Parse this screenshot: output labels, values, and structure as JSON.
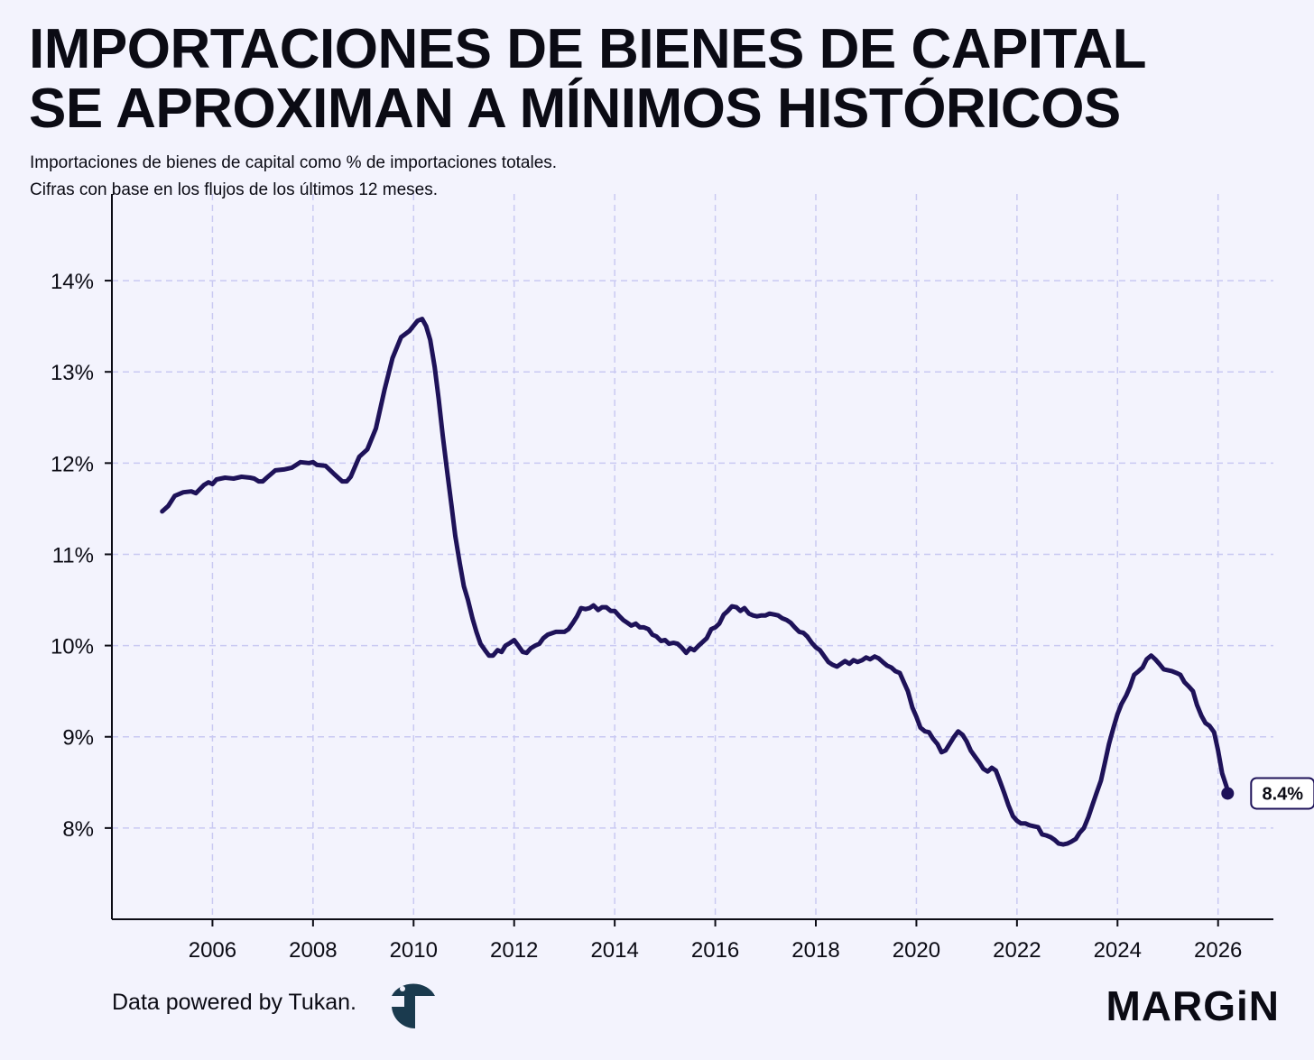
{
  "header": {
    "title_line1": "IMPORTACIONES DE BIENES DE CAPITAL",
    "title_line2": "SE APROXIMAN A MÍNIMOS HISTÓRICOS",
    "subtitle_line1": "Importaciones de bienes de capital como % de importaciones totales.",
    "subtitle_line2": "Cifras con base en los flujos de los últimos 12 meses."
  },
  "footer": {
    "credit": "Data powered by Tukan.",
    "brand": "MARGiN",
    "tukan_icon": "tukan-logo-icon"
  },
  "colors": {
    "background": "#f3f3fd",
    "line": "#1e1259",
    "grid": "#c9c9f2",
    "axis": "#0b0b14",
    "logo": "#1a3a4e"
  },
  "chart_data": {
    "type": "line",
    "xlim": [
      2004.0,
      2027.1
    ],
    "ylim": [
      7.0,
      14.95
    ],
    "x_ticks": [
      2006,
      2008,
      2010,
      2012,
      2014,
      2016,
      2018,
      2020,
      2022,
      2024,
      2026
    ],
    "x_tick_labels": [
      "2006",
      "2008",
      "2010",
      "2012",
      "2014",
      "2016",
      "2018",
      "2020",
      "2022",
      "2024",
      "2026"
    ],
    "y_ticks": [
      8,
      9,
      10,
      11,
      12,
      13,
      14
    ],
    "y_tick_labels": [
      "8%",
      "9%",
      "10%",
      "11%",
      "12%",
      "13%",
      "14%"
    ],
    "grid": true,
    "last_value_label": "8.4%",
    "series": [
      {
        "values": [
          [
            2005.0,
            11.47
          ],
          [
            2005.12,
            11.53
          ],
          [
            2005.25,
            11.64
          ],
          [
            2005.42,
            11.68
          ],
          [
            2005.58,
            11.69
          ],
          [
            2005.67,
            11.67
          ],
          [
            2005.83,
            11.76
          ],
          [
            2005.92,
            11.79
          ],
          [
            2006.0,
            11.77
          ],
          [
            2006.08,
            11.82
          ],
          [
            2006.25,
            11.84
          ],
          [
            2006.42,
            11.83
          ],
          [
            2006.58,
            11.85
          ],
          [
            2006.75,
            11.84
          ],
          [
            2006.83,
            11.83
          ],
          [
            2006.92,
            11.8
          ],
          [
            2007.0,
            11.8
          ],
          [
            2007.08,
            11.84
          ],
          [
            2007.25,
            11.92
          ],
          [
            2007.42,
            11.93
          ],
          [
            2007.58,
            11.95
          ],
          [
            2007.75,
            12.01
          ],
          [
            2007.92,
            12.0
          ],
          [
            2008.0,
            12.01
          ],
          [
            2008.08,
            11.98
          ],
          [
            2008.25,
            11.97
          ],
          [
            2008.42,
            11.88
          ],
          [
            2008.58,
            11.8
          ],
          [
            2008.67,
            11.8
          ],
          [
            2008.75,
            11.85
          ],
          [
            2008.92,
            12.07
          ],
          [
            2009.08,
            12.15
          ],
          [
            2009.25,
            12.38
          ],
          [
            2009.42,
            12.8
          ],
          [
            2009.58,
            13.15
          ],
          [
            2009.75,
            13.38
          ],
          [
            2009.92,
            13.45
          ],
          [
            2010.08,
            13.56
          ],
          [
            2010.17,
            13.58
          ],
          [
            2010.25,
            13.5
          ],
          [
            2010.33,
            13.35
          ],
          [
            2010.42,
            13.05
          ],
          [
            2010.5,
            12.7
          ],
          [
            2010.58,
            12.3
          ],
          [
            2010.67,
            11.9
          ],
          [
            2010.75,
            11.55
          ],
          [
            2010.83,
            11.2
          ],
          [
            2010.92,
            10.9
          ],
          [
            2011.0,
            10.65
          ],
          [
            2011.08,
            10.5
          ],
          [
            2011.17,
            10.3
          ],
          [
            2011.25,
            10.15
          ],
          [
            2011.33,
            10.02
          ],
          [
            2011.42,
            9.95
          ],
          [
            2011.5,
            9.89
          ],
          [
            2011.58,
            9.89
          ],
          [
            2011.67,
            9.95
          ],
          [
            2011.75,
            9.93
          ],
          [
            2011.83,
            10.0
          ],
          [
            2011.92,
            10.03
          ],
          [
            2012.0,
            10.06
          ],
          [
            2012.08,
            10.0
          ],
          [
            2012.17,
            9.93
          ],
          [
            2012.25,
            9.92
          ],
          [
            2012.33,
            9.97
          ],
          [
            2012.42,
            10.0
          ],
          [
            2012.5,
            10.02
          ],
          [
            2012.58,
            10.08
          ],
          [
            2012.67,
            10.12
          ],
          [
            2012.83,
            10.15
          ],
          [
            2013.0,
            10.15
          ],
          [
            2013.08,
            10.18
          ],
          [
            2013.17,
            10.25
          ],
          [
            2013.25,
            10.32
          ],
          [
            2013.33,
            10.41
          ],
          [
            2013.42,
            10.4
          ],
          [
            2013.5,
            10.41
          ],
          [
            2013.58,
            10.44
          ],
          [
            2013.67,
            10.39
          ],
          [
            2013.75,
            10.42
          ],
          [
            2013.83,
            10.42
          ],
          [
            2013.92,
            10.38
          ],
          [
            2014.0,
            10.38
          ],
          [
            2014.08,
            10.33
          ],
          [
            2014.17,
            10.28
          ],
          [
            2014.25,
            10.25
          ],
          [
            2014.33,
            10.22
          ],
          [
            2014.42,
            10.24
          ],
          [
            2014.5,
            10.2
          ],
          [
            2014.58,
            10.2
          ],
          [
            2014.67,
            10.18
          ],
          [
            2014.75,
            10.12
          ],
          [
            2014.83,
            10.1
          ],
          [
            2014.92,
            10.05
          ],
          [
            2015.0,
            10.06
          ],
          [
            2015.08,
            10.02
          ],
          [
            2015.17,
            10.03
          ],
          [
            2015.25,
            10.02
          ],
          [
            2015.33,
            9.98
          ],
          [
            2015.42,
            9.92
          ],
          [
            2015.5,
            9.97
          ],
          [
            2015.58,
            9.95
          ],
          [
            2015.67,
            10.0
          ],
          [
            2015.75,
            10.04
          ],
          [
            2015.83,
            10.08
          ],
          [
            2015.92,
            10.18
          ],
          [
            2016.0,
            10.2
          ],
          [
            2016.08,
            10.24
          ],
          [
            2016.17,
            10.34
          ],
          [
            2016.25,
            10.38
          ],
          [
            2016.33,
            10.43
          ],
          [
            2016.42,
            10.42
          ],
          [
            2016.5,
            10.38
          ],
          [
            2016.58,
            10.41
          ],
          [
            2016.67,
            10.35
          ],
          [
            2016.75,
            10.33
          ],
          [
            2016.83,
            10.32
          ],
          [
            2016.92,
            10.33
          ],
          [
            2017.0,
            10.33
          ],
          [
            2017.08,
            10.35
          ],
          [
            2017.17,
            10.34
          ],
          [
            2017.25,
            10.33
          ],
          [
            2017.33,
            10.3
          ],
          [
            2017.42,
            10.28
          ],
          [
            2017.5,
            10.25
          ],
          [
            2017.58,
            10.2
          ],
          [
            2017.67,
            10.15
          ],
          [
            2017.75,
            10.14
          ],
          [
            2017.83,
            10.1
          ],
          [
            2017.92,
            10.03
          ],
          [
            2018.0,
            9.98
          ],
          [
            2018.08,
            9.95
          ],
          [
            2018.17,
            9.88
          ],
          [
            2018.25,
            9.82
          ],
          [
            2018.33,
            9.79
          ],
          [
            2018.42,
            9.77
          ],
          [
            2018.5,
            9.8
          ],
          [
            2018.58,
            9.83
          ],
          [
            2018.67,
            9.8
          ],
          [
            2018.75,
            9.84
          ],
          [
            2018.83,
            9.82
          ],
          [
            2018.92,
            9.84
          ],
          [
            2019.0,
            9.87
          ],
          [
            2019.08,
            9.85
          ],
          [
            2019.17,
            9.88
          ],
          [
            2019.25,
            9.86
          ],
          [
            2019.33,
            9.82
          ],
          [
            2019.42,
            9.78
          ],
          [
            2019.5,
            9.76
          ],
          [
            2019.58,
            9.72
          ],
          [
            2019.67,
            9.7
          ],
          [
            2019.75,
            9.6
          ],
          [
            2019.83,
            9.5
          ],
          [
            2019.92,
            9.32
          ],
          [
            2020.0,
            9.22
          ],
          [
            2020.08,
            9.1
          ],
          [
            2020.17,
            9.06
          ],
          [
            2020.25,
            9.05
          ],
          [
            2020.33,
            8.98
          ],
          [
            2020.42,
            8.92
          ],
          [
            2020.5,
            8.83
          ],
          [
            2020.58,
            8.85
          ],
          [
            2020.67,
            8.93
          ],
          [
            2020.75,
            9.0
          ],
          [
            2020.83,
            9.06
          ],
          [
            2020.92,
            9.02
          ],
          [
            2021.0,
            8.95
          ],
          [
            2021.08,
            8.85
          ],
          [
            2021.17,
            8.78
          ],
          [
            2021.25,
            8.72
          ],
          [
            2021.33,
            8.65
          ],
          [
            2021.42,
            8.62
          ],
          [
            2021.5,
            8.66
          ],
          [
            2021.58,
            8.63
          ],
          [
            2021.67,
            8.5
          ],
          [
            2021.75,
            8.38
          ],
          [
            2021.83,
            8.25
          ],
          [
            2021.92,
            8.13
          ],
          [
            2022.0,
            8.08
          ],
          [
            2022.08,
            8.05
          ],
          [
            2022.17,
            8.05
          ],
          [
            2022.25,
            8.03
          ],
          [
            2022.33,
            8.02
          ],
          [
            2022.42,
            8.01
          ],
          [
            2022.5,
            7.93
          ],
          [
            2022.58,
            7.92
          ],
          [
            2022.67,
            7.9
          ],
          [
            2022.75,
            7.87
          ],
          [
            2022.83,
            7.83
          ],
          [
            2022.92,
            7.82
          ],
          [
            2023.0,
            7.83
          ],
          [
            2023.08,
            7.85
          ],
          [
            2023.17,
            7.88
          ],
          [
            2023.25,
            7.95
          ],
          [
            2023.33,
            8.0
          ],
          [
            2023.42,
            8.12
          ],
          [
            2023.5,
            8.25
          ],
          [
            2023.58,
            8.38
          ],
          [
            2023.67,
            8.52
          ],
          [
            2023.75,
            8.72
          ],
          [
            2023.83,
            8.92
          ],
          [
            2023.92,
            9.1
          ],
          [
            2024.0,
            9.25
          ],
          [
            2024.08,
            9.36
          ],
          [
            2024.17,
            9.45
          ],
          [
            2024.25,
            9.55
          ],
          [
            2024.33,
            9.68
          ],
          [
            2024.42,
            9.72
          ],
          [
            2024.5,
            9.76
          ],
          [
            2024.58,
            9.85
          ],
          [
            2024.67,
            9.89
          ],
          [
            2024.75,
            9.85
          ],
          [
            2024.83,
            9.8
          ],
          [
            2024.92,
            9.74
          ],
          [
            2025.0,
            9.73
          ],
          [
            2025.08,
            9.72
          ],
          [
            2025.17,
            9.7
          ],
          [
            2025.25,
            9.68
          ],
          [
            2025.33,
            9.6
          ],
          [
            2025.42,
            9.55
          ],
          [
            2025.5,
            9.5
          ],
          [
            2025.58,
            9.35
          ],
          [
            2025.67,
            9.23
          ],
          [
            2025.75,
            9.15
          ],
          [
            2025.83,
            9.12
          ],
          [
            2025.92,
            9.05
          ],
          [
            2026.0,
            8.85
          ],
          [
            2026.08,
            8.6
          ],
          [
            2026.17,
            8.45
          ],
          [
            2026.19,
            8.38
          ]
        ]
      }
    ]
  }
}
